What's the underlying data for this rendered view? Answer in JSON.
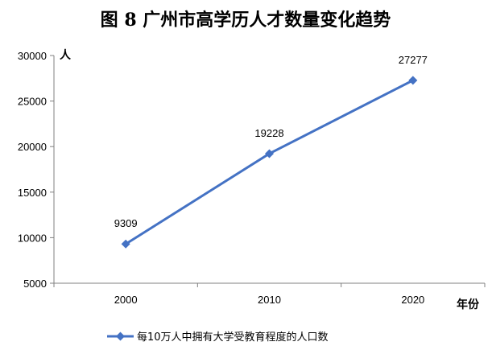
{
  "chart_data": {
    "type": "line",
    "title": "图 8 广州市高学历人才数量变化趋势",
    "ylabel": "人",
    "xlabel": "年份",
    "categories": [
      "2000",
      "2010",
      "2020"
    ],
    "yticks": [
      "30000",
      "25000",
      "20000",
      "15000",
      "10000",
      "5000"
    ],
    "ylim": [
      5000,
      30000
    ],
    "grid": false,
    "legend_position": "bottom",
    "series": [
      {
        "name": "每10万人中拥有大学受教育程度的人口数",
        "values": [
          9309,
          19228,
          27277
        ],
        "labels": [
          "9309",
          "19228",
          "27277"
        ],
        "color": "#4472C4"
      }
    ]
  }
}
